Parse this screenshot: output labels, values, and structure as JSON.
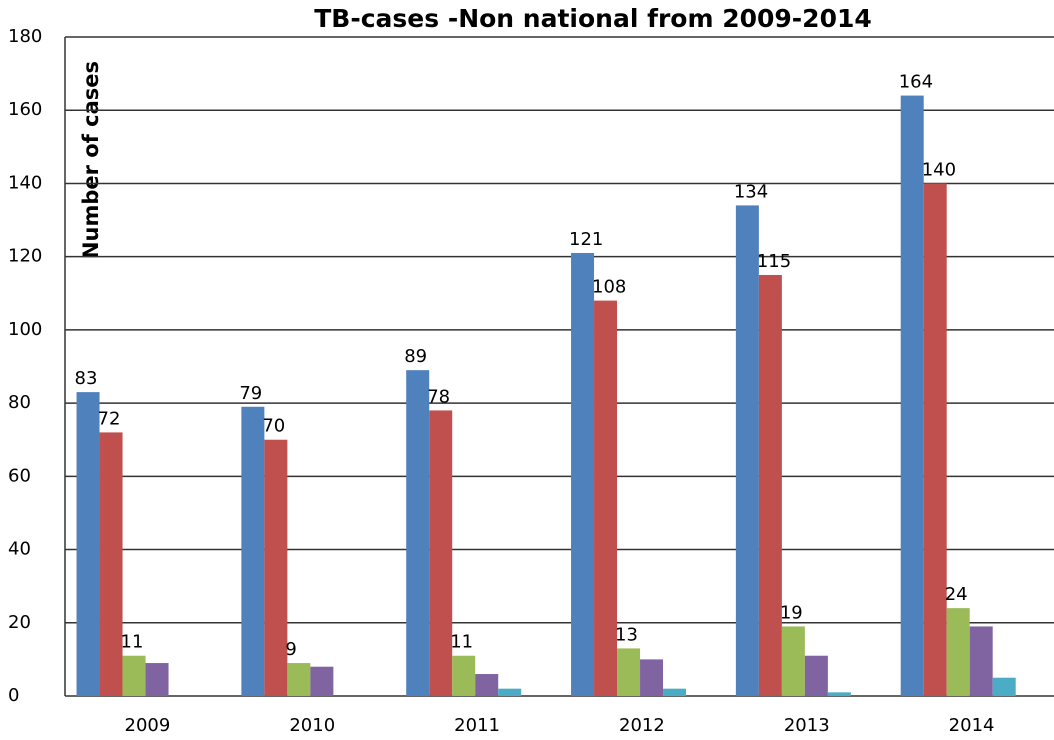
{
  "chart_data": {
    "type": "bar",
    "title": "TB-cases -Non national from 2009-2014",
    "y_label": "Number of cases",
    "categories": [
      "2009",
      "2010",
      "2011",
      "2012",
      "2013",
      "2014"
    ],
    "series": [
      {
        "color": "#4f81bd",
        "values": [
          83,
          79,
          89,
          121,
          134,
          164
        ],
        "show_labels": true
      },
      {
        "color": "#c0504d",
        "values": [
          72,
          70,
          78,
          108,
          115,
          140
        ],
        "show_labels": true
      },
      {
        "color": "#9bbb59",
        "values": [
          11,
          9,
          11,
          13,
          19,
          24
        ],
        "show_labels": true
      },
      {
        "color": "#8064a2",
        "values": [
          9,
          8,
          6,
          10,
          11,
          19
        ],
        "show_labels": false
      },
      {
        "color": "#4bacc6",
        "values": [
          0,
          0,
          2,
          2,
          1,
          5
        ],
        "show_labels": false
      }
    ],
    "ylim": [
      0,
      180
    ],
    "yticks": [
      0,
      20,
      40,
      60,
      80,
      100,
      120,
      140,
      160,
      180
    ],
    "grid": true
  }
}
